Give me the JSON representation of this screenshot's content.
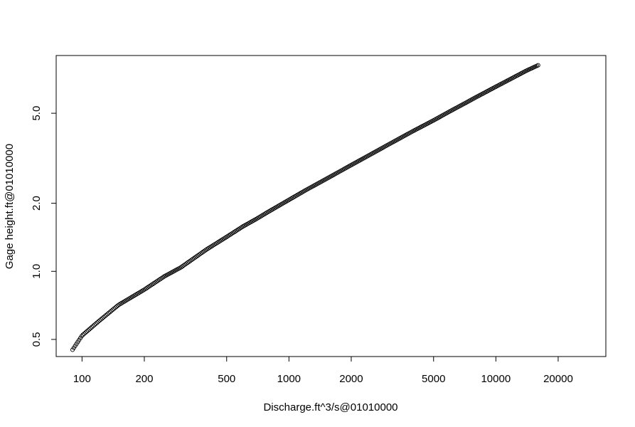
{
  "chart_data": {
    "type": "scatter",
    "title": "",
    "xlabel": "Discharge.ft^3/s@01010000",
    "ylabel": "Gage height.ft@01010000",
    "x_scale": "log",
    "y_scale": "log",
    "xlim": [
      75,
      34000
    ],
    "ylim": [
      0.42,
      9.0
    ],
    "x_ticks": [
      100,
      200,
      500,
      1000,
      2000,
      5000,
      10000,
      20000
    ],
    "x_tick_labels": [
      "100",
      "200",
      "500",
      "1000",
      "2000",
      "5000",
      "10000",
      "20000"
    ],
    "y_ticks": [
      0.5,
      1.0,
      2.0,
      5.0
    ],
    "y_tick_labels": [
      "0.5",
      "1.0",
      "2.0",
      "5.0"
    ],
    "grid": false,
    "marker": "open-circle",
    "marker_color": "#000000",
    "series": [
      {
        "x": [
          90,
          100,
          120,
          150,
          200,
          250,
          300,
          400,
          500,
          600,
          700,
          800,
          1000,
          1200,
          1500,
          2000,
          2500,
          3000,
          4000,
          5000,
          6000,
          7000,
          8000,
          10000,
          12000,
          14000,
          16000
        ],
        "y": [
          0.45,
          0.52,
          0.6,
          0.71,
          0.83,
          0.95,
          1.04,
          1.25,
          1.42,
          1.58,
          1.71,
          1.84,
          2.07,
          2.28,
          2.55,
          2.95,
          3.3,
          3.62,
          4.18,
          4.65,
          5.1,
          5.5,
          5.88,
          6.55,
          7.15,
          7.7,
          8.15
        ]
      }
    ]
  }
}
